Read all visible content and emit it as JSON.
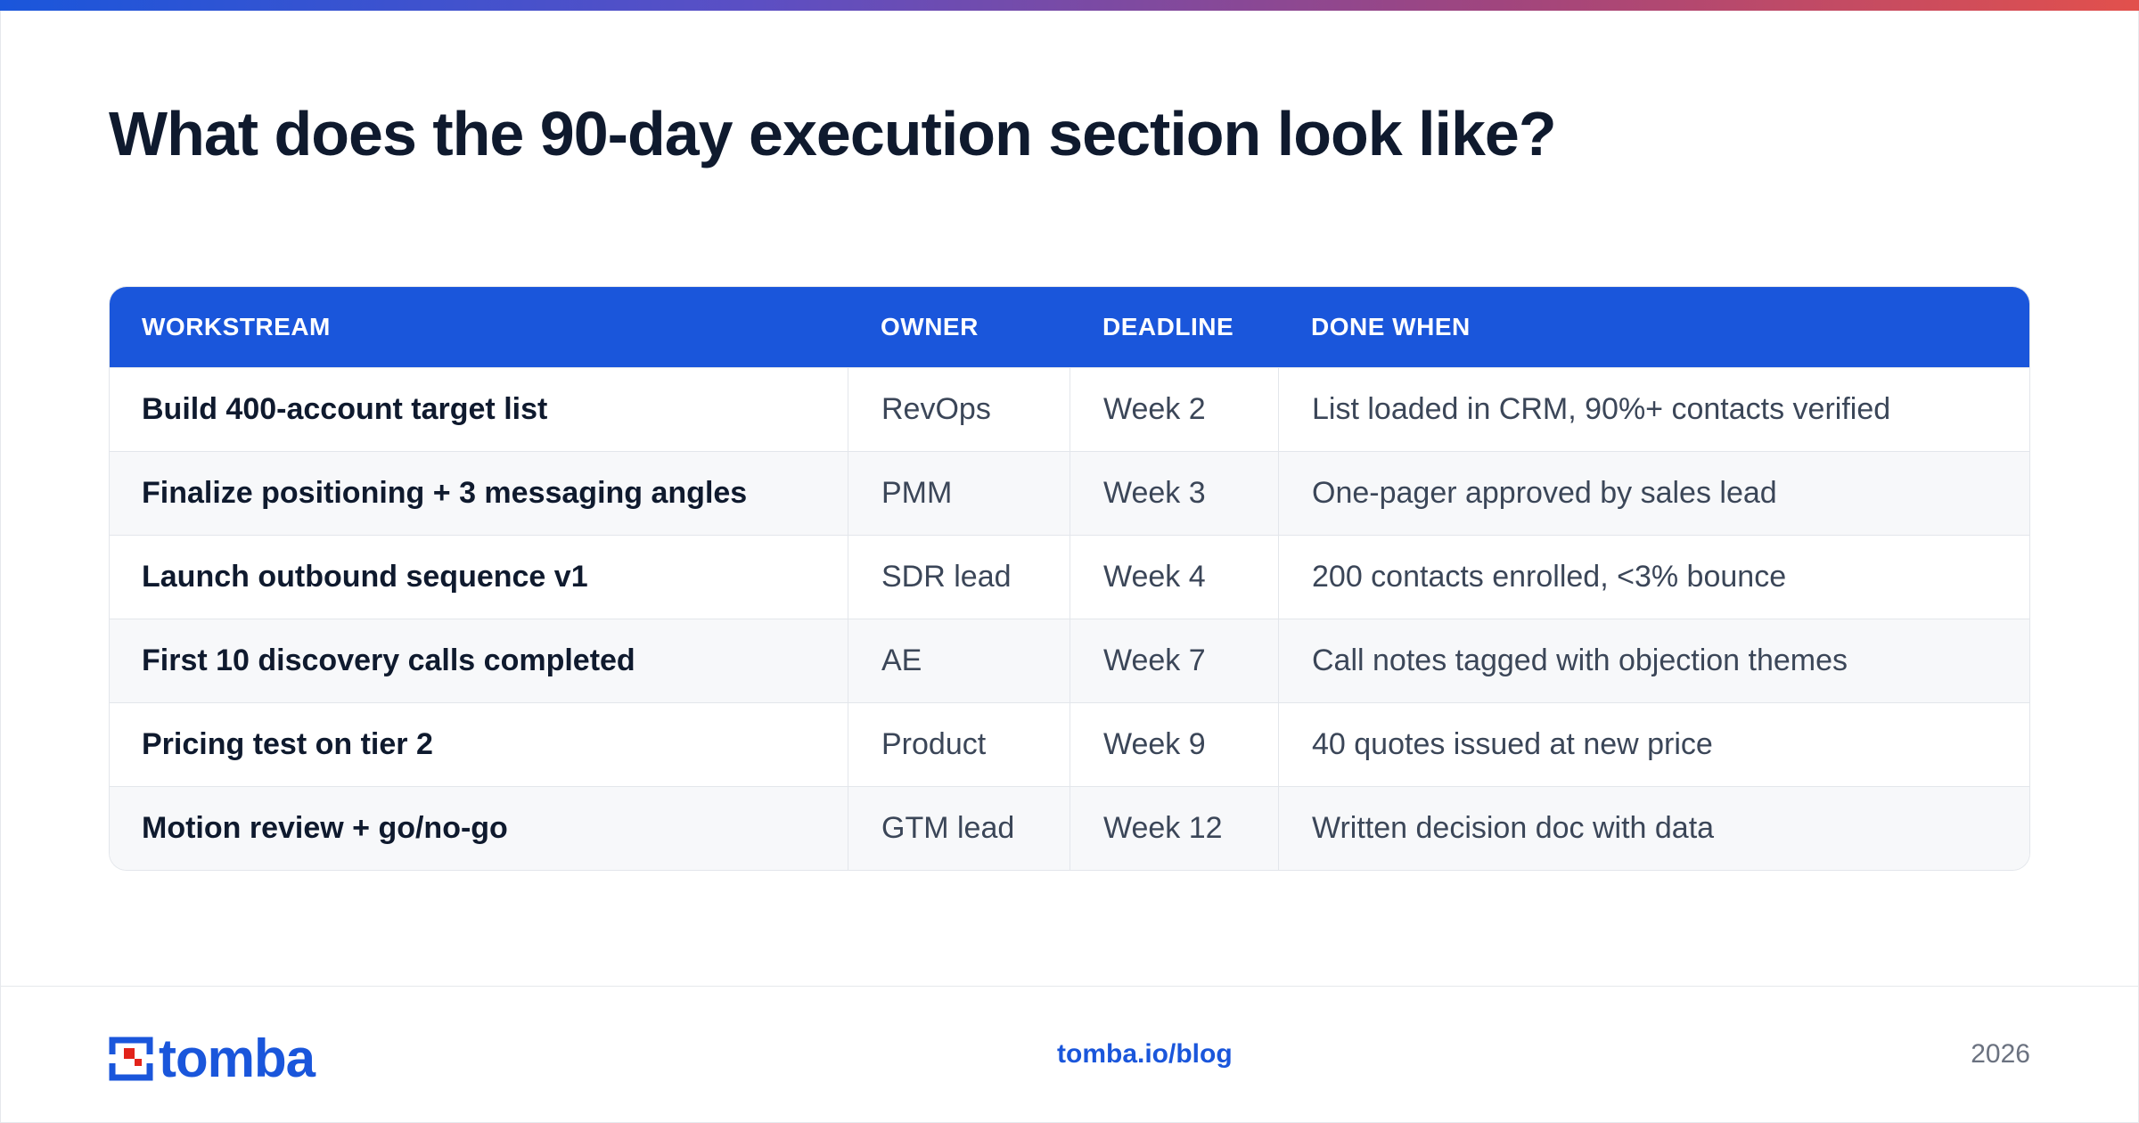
{
  "page": {
    "title": "What does the 90-day execution section look like?"
  },
  "table": {
    "headers": [
      "WORKSTREAM",
      "OWNER",
      "DEADLINE",
      "DONE WHEN"
    ],
    "rows": [
      {
        "workstream": "Build 400-account target list",
        "owner": "RevOps",
        "deadline": "Week 2",
        "done_when": "List loaded in CRM, 90%+ contacts verified"
      },
      {
        "workstream": "Finalize positioning + 3 messaging angles",
        "owner": "PMM",
        "deadline": "Week 3",
        "done_when": "One-pager approved by sales lead"
      },
      {
        "workstream": "Launch outbound sequence v1",
        "owner": "SDR lead",
        "deadline": "Week 4",
        "done_when": "200 contacts enrolled, <3% bounce"
      },
      {
        "workstream": "First 10 discovery calls completed",
        "owner": "AE",
        "deadline": "Week 7",
        "done_when": "Call notes tagged with objection themes"
      },
      {
        "workstream": "Pricing test on tier 2",
        "owner": "Product",
        "deadline": "Week 9",
        "done_when": "40 quotes issued at new price"
      },
      {
        "workstream": "Motion review + go/no-go",
        "owner": "GTM lead",
        "deadline": "Week 12",
        "done_when": "Written decision doc with data"
      }
    ]
  },
  "footer": {
    "logo_text": "tomba",
    "logo_icon": "tomba-logo-icon",
    "link": "tomba.io/blog",
    "year": "2026"
  },
  "colors": {
    "accent": "#1a56db",
    "gradient": [
      "#1a56db",
      "#5b4fc4",
      "#a0457e",
      "#e2504c"
    ],
    "logo_red": "#e2231a"
  }
}
